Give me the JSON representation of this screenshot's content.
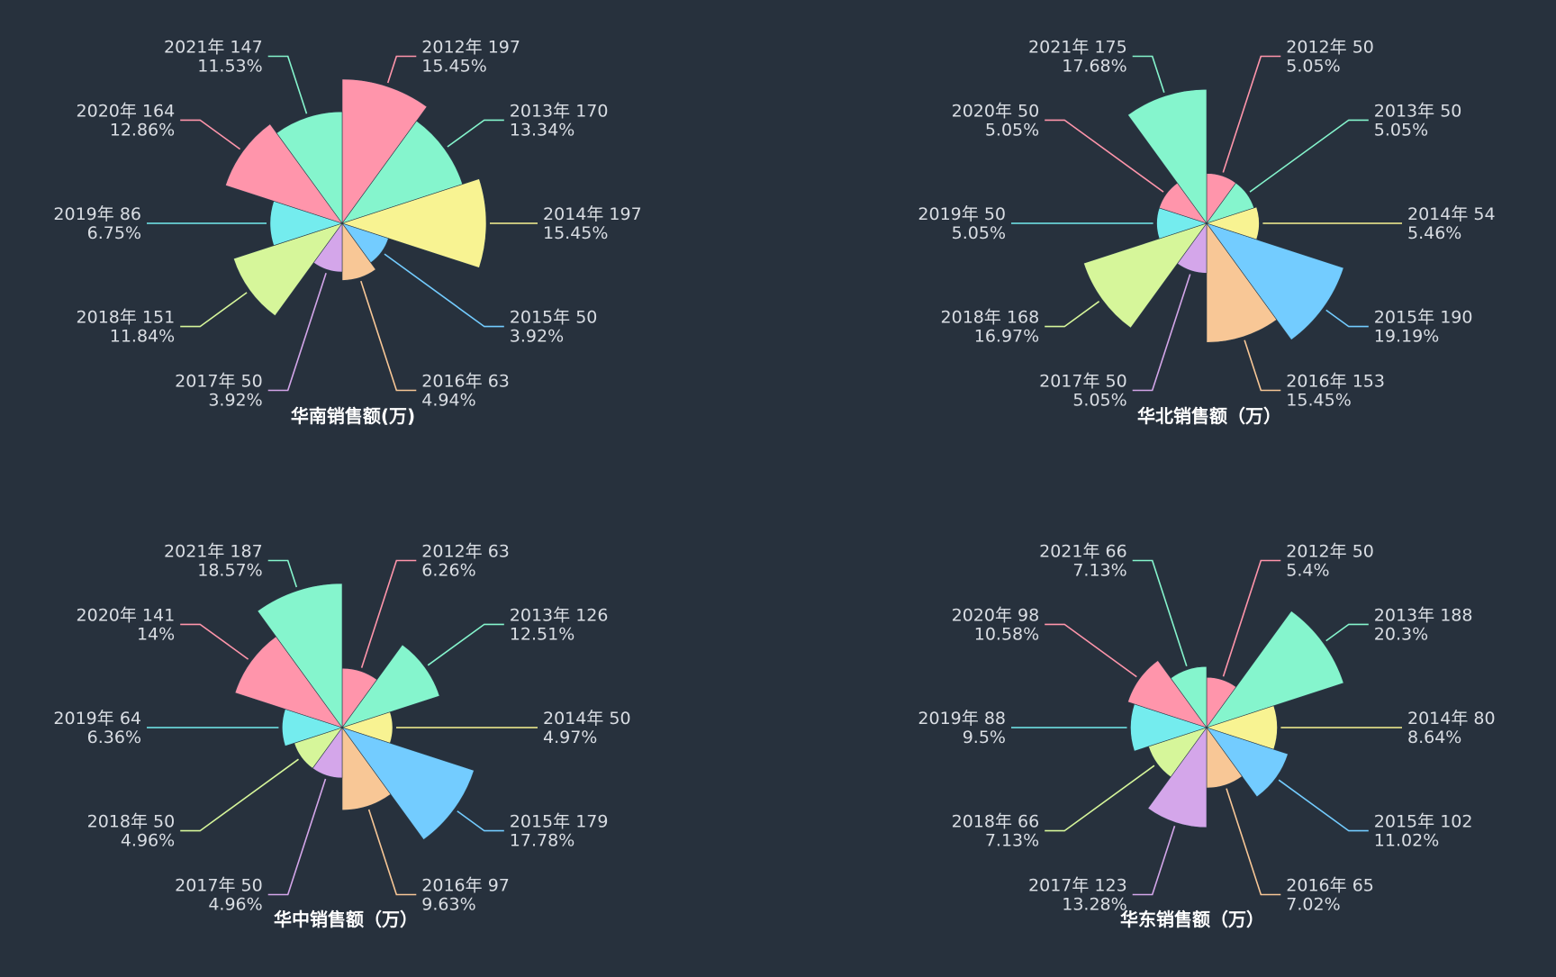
{
  "colors": {
    "background": "#27313d",
    "label_text": "#d9dde3",
    "title_text": "#ffffff",
    "palette": [
      "#ff95ab",
      "#85f5cd",
      "#f8f392",
      "#73ccff",
      "#f8c796",
      "#d4a6ea",
      "#d6f69a",
      "#74ecee",
      "#ff95ab",
      "#85f5cd"
    ]
  },
  "chart_data": [
    {
      "type": "pie",
      "variant": "nightingale-rose",
      "title": "华南销售额(万)",
      "categories": [
        "2012年",
        "2013年",
        "2014年",
        "2015年",
        "2016年",
        "2017年",
        "2018年",
        "2019年",
        "2020年",
        "2021年"
      ],
      "values": [
        197,
        170,
        197,
        50,
        63,
        50,
        151,
        86,
        164,
        147
      ],
      "percents": [
        "15.45%",
        "13.34%",
        "15.45%",
        "3.92%",
        "4.94%",
        "3.92%",
        "11.84%",
        "6.75%",
        "12.86%",
        "11.53%"
      ]
    },
    {
      "type": "pie",
      "variant": "nightingale-rose",
      "title": "华北销售额（万）",
      "categories": [
        "2012年",
        "2013年",
        "2014年",
        "2015年",
        "2016年",
        "2017年",
        "2018年",
        "2019年",
        "2020年",
        "2021年"
      ],
      "values": [
        50,
        50,
        54,
        190,
        153,
        50,
        168,
        50,
        50,
        175
      ],
      "percents": [
        "5.05%",
        "5.05%",
        "5.46%",
        "19.19%",
        "15.45%",
        "5.05%",
        "16.97%",
        "5.05%",
        "5.05%",
        "17.68%"
      ]
    },
    {
      "type": "pie",
      "variant": "nightingale-rose",
      "title": "华中销售额（万）",
      "categories": [
        "2012年",
        "2013年",
        "2014年",
        "2015年",
        "2016年",
        "2017年",
        "2018年",
        "2019年",
        "2020年",
        "2021年"
      ],
      "values": [
        63,
        126,
        50,
        179,
        97,
        50,
        50,
        64,
        141,
        187
      ],
      "percents": [
        "6.26%",
        "12.51%",
        "4.97%",
        "17.78%",
        "9.63%",
        "4.96%",
        "4.96%",
        "6.36%",
        "14%",
        "18.57%"
      ]
    },
    {
      "type": "pie",
      "variant": "nightingale-rose",
      "title": "华东销售额（万）",
      "categories": [
        "2012年",
        "2013年",
        "2014年",
        "2015年",
        "2016年",
        "2017年",
        "2018年",
        "2019年",
        "2020年",
        "2021年"
      ],
      "values": [
        50,
        188,
        80,
        102,
        65,
        123,
        66,
        88,
        98,
        66
      ],
      "percents": [
        "5.4%",
        "20.3%",
        "8.64%",
        "11.02%",
        "7.02%",
        "13.28%",
        "7.13%",
        "9.5%",
        "10.58%",
        "7.13%"
      ]
    }
  ]
}
